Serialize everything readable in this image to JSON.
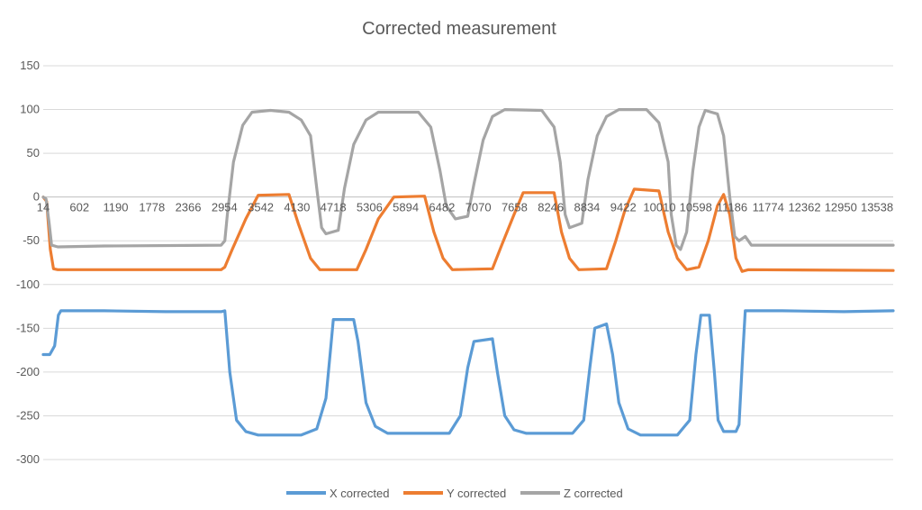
{
  "chart_data": {
    "type": "line",
    "title": "Corrected measurement",
    "xlabel": "",
    "ylabel": "",
    "ylim": [
      -300,
      150
    ],
    "y_ticks": [
      150,
      100,
      50,
      0,
      -50,
      -100,
      -150,
      -200,
      -250,
      -300
    ],
    "y_tick_labels": [
      "150",
      "100",
      "50",
      "0",
      "-50",
      "-100",
      "-150",
      "-200",
      "-250",
      "-300"
    ],
    "x_range": [
      14,
      13800
    ],
    "x_tick_values": [
      14,
      602,
      1190,
      1778,
      2366,
      2954,
      3542,
      4130,
      4718,
      5306,
      5894,
      6482,
      7070,
      7658,
      8246,
      8834,
      9422,
      10010,
      10598,
      11186,
      11774,
      12362,
      12950,
      13538
    ],
    "x_tick_labels": [
      "14",
      "602",
      "1190",
      "1778",
      "2366",
      "2954",
      "3542",
      "4130",
      "4718",
      "5306",
      "5894",
      "6482",
      "7070",
      "7658",
      "8246",
      "8834",
      "9422",
      "10010",
      "10598",
      "11186",
      "11774",
      "12362",
      "12950",
      "13538"
    ],
    "grid": true,
    "legend_position": "bottom",
    "series": [
      {
        "name": "X corrected",
        "color": "#5b9bd5",
        "points": [
          [
            14,
            -180
          ],
          [
            120,
            -180
          ],
          [
            200,
            -170
          ],
          [
            260,
            -135
          ],
          [
            300,
            -130
          ],
          [
            1000,
            -130
          ],
          [
            2000,
            -131
          ],
          [
            2900,
            -131
          ],
          [
            2960,
            -130
          ],
          [
            3040,
            -200
          ],
          [
            3150,
            -255
          ],
          [
            3300,
            -268
          ],
          [
            3500,
            -272
          ],
          [
            4200,
            -272
          ],
          [
            4450,
            -265
          ],
          [
            4600,
            -230
          ],
          [
            4680,
            -170
          ],
          [
            4720,
            -140
          ],
          [
            5050,
            -140
          ],
          [
            5120,
            -165
          ],
          [
            5250,
            -235
          ],
          [
            5400,
            -262
          ],
          [
            5600,
            -270
          ],
          [
            6600,
            -270
          ],
          [
            6780,
            -250
          ],
          [
            6900,
            -195
          ],
          [
            7000,
            -165
          ],
          [
            7300,
            -162
          ],
          [
            7380,
            -200
          ],
          [
            7500,
            -250
          ],
          [
            7650,
            -266
          ],
          [
            7850,
            -270
          ],
          [
            8600,
            -270
          ],
          [
            8780,
            -255
          ],
          [
            8880,
            -195
          ],
          [
            8960,
            -150
          ],
          [
            9150,
            -145
          ],
          [
            9250,
            -180
          ],
          [
            9350,
            -235
          ],
          [
            9500,
            -265
          ],
          [
            9700,
            -272
          ],
          [
            10300,
            -272
          ],
          [
            10500,
            -255
          ],
          [
            10600,
            -180
          ],
          [
            10680,
            -135
          ],
          [
            10820,
            -135
          ],
          [
            10900,
            -200
          ],
          [
            10960,
            -255
          ],
          [
            11050,
            -268
          ],
          [
            11250,
            -268
          ],
          [
            11300,
            -260
          ],
          [
            11360,
            -180
          ],
          [
            11400,
            -130
          ],
          [
            12000,
            -130
          ],
          [
            13000,
            -131
          ],
          [
            13800,
            -130
          ]
        ]
      },
      {
        "name": "Y corrected",
        "color": "#ed7d31",
        "points": [
          [
            14,
            0
          ],
          [
            70,
            -5
          ],
          [
            130,
            -60
          ],
          [
            180,
            -82
          ],
          [
            250,
            -83
          ],
          [
            2900,
            -83
          ],
          [
            2960,
            -80
          ],
          [
            3080,
            -60
          ],
          [
            3300,
            -25
          ],
          [
            3500,
            2
          ],
          [
            4000,
            3
          ],
          [
            4150,
            -30
          ],
          [
            4350,
            -70
          ],
          [
            4500,
            -83
          ],
          [
            5100,
            -83
          ],
          [
            5250,
            -60
          ],
          [
            5450,
            -25
          ],
          [
            5700,
            0
          ],
          [
            6200,
            1
          ],
          [
            6350,
            -40
          ],
          [
            6500,
            -70
          ],
          [
            6650,
            -83
          ],
          [
            7300,
            -82
          ],
          [
            7450,
            -55
          ],
          [
            7650,
            -20
          ],
          [
            7800,
            5
          ],
          [
            8300,
            5
          ],
          [
            8420,
            -40
          ],
          [
            8550,
            -70
          ],
          [
            8700,
            -83
          ],
          [
            9150,
            -82
          ],
          [
            9300,
            -50
          ],
          [
            9450,
            -15
          ],
          [
            9600,
            9
          ],
          [
            10000,
            7
          ],
          [
            10150,
            -40
          ],
          [
            10300,
            -70
          ],
          [
            10450,
            -83
          ],
          [
            10650,
            -80
          ],
          [
            10800,
            -50
          ],
          [
            10950,
            -10
          ],
          [
            11050,
            3
          ],
          [
            11150,
            -20
          ],
          [
            11250,
            -70
          ],
          [
            11350,
            -85
          ],
          [
            11450,
            -83
          ],
          [
            13800,
            -84
          ]
        ]
      },
      {
        "name": "Z corrected",
        "color": "#a5a5a5",
        "points": [
          [
            14,
            0
          ],
          [
            60,
            -2
          ],
          [
            110,
            -30
          ],
          [
            150,
            -55
          ],
          [
            250,
            -57
          ],
          [
            1000,
            -56
          ],
          [
            2900,
            -55
          ],
          [
            2960,
            -50
          ],
          [
            3000,
            -20
          ],
          [
            3100,
            40
          ],
          [
            3250,
            82
          ],
          [
            3400,
            97
          ],
          [
            3700,
            99
          ],
          [
            4000,
            97
          ],
          [
            4200,
            88
          ],
          [
            4350,
            70
          ],
          [
            4450,
            10
          ],
          [
            4530,
            -35
          ],
          [
            4600,
            -42
          ],
          [
            4800,
            -38
          ],
          [
            4900,
            10
          ],
          [
            5050,
            60
          ],
          [
            5250,
            88
          ],
          [
            5450,
            97
          ],
          [
            6100,
            97
          ],
          [
            6300,
            80
          ],
          [
            6450,
            30
          ],
          [
            6550,
            -10
          ],
          [
            6700,
            -25
          ],
          [
            6900,
            -22
          ],
          [
            7000,
            15
          ],
          [
            7150,
            65
          ],
          [
            7300,
            92
          ],
          [
            7500,
            100
          ],
          [
            8100,
            99
          ],
          [
            8300,
            80
          ],
          [
            8400,
            40
          ],
          [
            8480,
            -20
          ],
          [
            8550,
            -35
          ],
          [
            8750,
            -30
          ],
          [
            8850,
            20
          ],
          [
            9000,
            70
          ],
          [
            9150,
            92
          ],
          [
            9350,
            100
          ],
          [
            9800,
            100
          ],
          [
            10000,
            85
          ],
          [
            10150,
            40
          ],
          [
            10200,
            -20
          ],
          [
            10280,
            -55
          ],
          [
            10350,
            -60
          ],
          [
            10450,
            -40
          ],
          [
            10550,
            30
          ],
          [
            10650,
            80
          ],
          [
            10750,
            99
          ],
          [
            10950,
            95
          ],
          [
            11050,
            70
          ],
          [
            11150,
            0
          ],
          [
            11230,
            -45
          ],
          [
            11300,
            -50
          ],
          [
            11400,
            -45
          ],
          [
            11500,
            -55
          ],
          [
            12500,
            -55
          ],
          [
            13800,
            -55
          ]
        ]
      }
    ]
  }
}
